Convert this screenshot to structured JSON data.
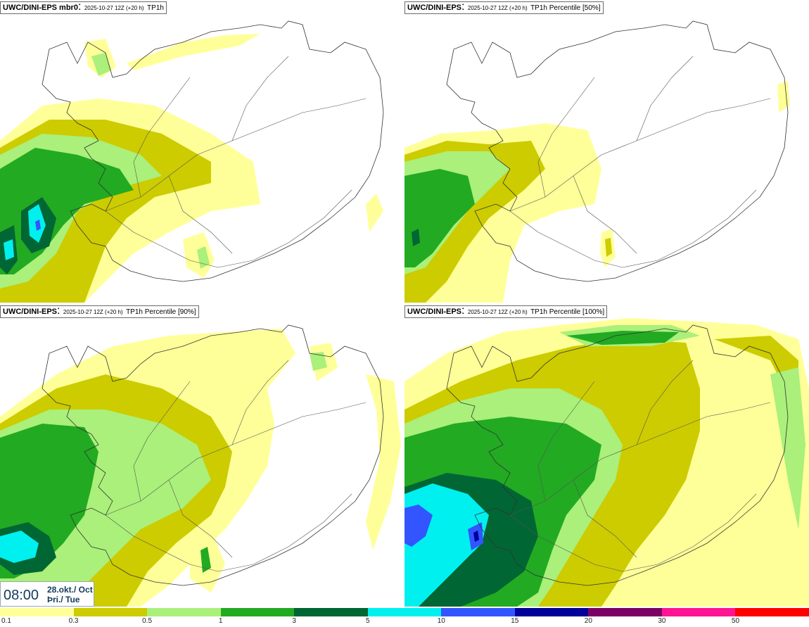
{
  "panels": [
    {
      "model": "UWC/DINI-EPS mbr0",
      "run": "2025-10-27 12Z (+20 h)",
      "field": "TP1h"
    },
    {
      "model": "UWC/DINI-EPS",
      "run": "2025-10-27 12Z (+20 h)",
      "field": "TP1h Percentile [50%]"
    },
    {
      "model": "UWC/DINI-EPS",
      "run": "2025-10-27 12Z (+20 h)",
      "field": "TP1h Percentile [90%]"
    },
    {
      "model": "UWC/DINI-EPS",
      "run": "2025-10-27 12Z (+20 h)",
      "field": "TP1h Percentile [100%]"
    }
  ],
  "valid_time": {
    "time": "08:00",
    "date_line1": "28.okt./ Oct",
    "date_line2": "Þri./ Tue"
  },
  "colorbar": {
    "colors": [
      "#ffff99",
      "#cccc00",
      "#aaf07a",
      "#22aa22",
      "#006633",
      "#00f0f0",
      "#3355ff",
      "#000099",
      "#7a0066",
      "#ff1493",
      "#ff0000"
    ],
    "tick_labels": [
      "0.1",
      "0.3",
      "0.5",
      "1",
      "3",
      "5",
      "10",
      "15",
      "20",
      "30",
      "50"
    ]
  }
}
